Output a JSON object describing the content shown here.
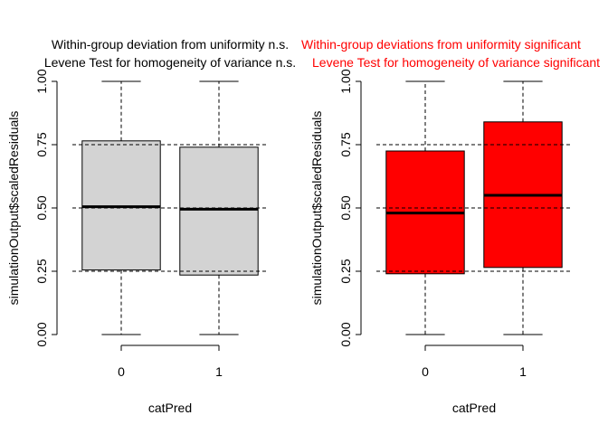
{
  "colors": {
    "box_fill_left": "#d3d3d3",
    "box_fill_right": "#ff0000",
    "title_red": "#ff0000"
  },
  "chart_data": [
    {
      "type": "boxplot",
      "title_line1": "Within-group deviation from uniformity n.s.",
      "title_line2": "Levene Test for homogeneity of variance n.s.",
      "xlabel": "catPred",
      "ylabel": "simulationOutput$scaledResiduals",
      "categories": [
        "0",
        "1"
      ],
      "ylim": [
        0,
        1
      ],
      "yticks": [
        "0.00",
        "0.25",
        "0.50",
        "0.75",
        "1.00"
      ],
      "reference_lines": [
        0.25,
        0.5,
        0.75
      ],
      "boxes": [
        {
          "category": "0",
          "min": 0.0,
          "q1": 0.255,
          "median": 0.505,
          "q3": 0.765,
          "max": 1.0
        },
        {
          "category": "1",
          "min": 0.0,
          "q1": 0.235,
          "median": 0.495,
          "q3": 0.74,
          "max": 1.0
        }
      ],
      "fill": "#d3d3d3"
    },
    {
      "type": "boxplot",
      "title_line1": "Within-group deviations from uniformity significant",
      "title_line2": "Levene Test for homogeneity of variance significant",
      "xlabel": "catPred",
      "ylabel": "simulationOutput$scaledResiduals",
      "categories": [
        "0",
        "1"
      ],
      "ylim": [
        0,
        1
      ],
      "yticks": [
        "0.00",
        "0.25",
        "0.50",
        "0.75",
        "1.00"
      ],
      "reference_lines": [
        0.25,
        0.5,
        0.75
      ],
      "boxes": [
        {
          "category": "0",
          "min": 0.0,
          "q1": 0.24,
          "median": 0.48,
          "q3": 0.725,
          "max": 1.0
        },
        {
          "category": "1",
          "min": 0.0,
          "q1": 0.265,
          "median": 0.55,
          "q3": 0.84,
          "max": 1.0
        }
      ],
      "fill": "#ff0000"
    }
  ]
}
